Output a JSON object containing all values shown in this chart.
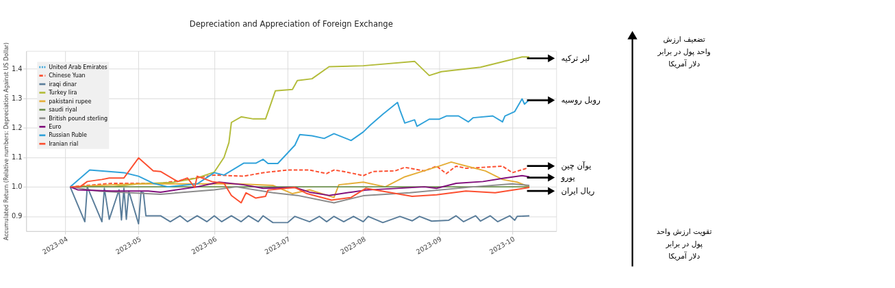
{
  "chart_data": {
    "type": "line",
    "title": "Depreciation and Appreciation of Foreign Exchange",
    "ylabel": "Accumulated Return (Relative numbers: Depreciation Against US Dollar)",
    "xlim": [
      "2023-03-16",
      "2023-10-19"
    ],
    "xticks": [
      "2023-04",
      "2023-05",
      "2023-06",
      "2023-07",
      "2023-08",
      "2023-09",
      "2023-10"
    ],
    "ylim": [
      0.85,
      1.46
    ],
    "yticks": [
      0.9,
      {
        "value": 1,
        "label": "1.0"
      },
      1.1,
      1.2,
      1.3,
      1.4
    ],
    "grid": true,
    "legend": "top left",
    "marker": "none",
    "series": [
      {
        "name": "United Arab Emirates",
        "color": "#30a2da",
        "line_style": "dotted"
      },
      {
        "name": "Chinese Yuan",
        "color": "#fc4f30",
        "line_style": "dashed",
        "x": [
          "2023-04-03",
          "2023-04-20",
          "2023-05-10",
          "2023-05-21",
          "2023-06-01",
          "2023-06-13",
          "2023-06-21",
          "2023-07-01",
          "2023-07-10",
          "2023-07-17",
          "2023-07-20",
          "2023-07-24",
          "2023-08-01",
          "2023-08-05",
          "2023-08-14",
          "2023-08-18",
          "2023-08-26",
          "2023-08-31",
          "2023-09-04",
          "2023-09-08",
          "2023-09-12",
          "2023-09-19",
          "2023-09-27",
          "2023-10-01",
          "2023-10-07"
        ],
        "values": [
          1.0,
          1.012,
          1.012,
          1.025,
          1.04,
          1.036,
          1.048,
          1.057,
          1.057,
          1.045,
          1.057,
          1.052,
          1.038,
          1.052,
          1.054,
          1.066,
          1.054,
          1.07,
          1.045,
          1.07,
          1.063,
          1.066,
          1.07,
          1.048,
          1.063
        ]
      },
      {
        "name": "iraqi dinar",
        "color": "#5a7d9a",
        "line_style": "solid",
        "x": [
          "2023-04-03",
          "2023-04-09",
          "2023-04-10",
          "2023-04-16",
          "2023-04-17",
          "2023-04-19",
          "2023-04-23",
          "2023-04-24",
          "2023-04-25",
          "2023-04-26",
          "2023-04-27",
          "2023-05-01",
          "2023-05-02",
          "2023-05-03",
          "2023-05-04",
          "2023-05-10",
          "2023-05-14",
          "2023-05-18",
          "2023-05-21",
          "2023-05-25",
          "2023-05-29",
          "2023-06-01",
          "2023-06-04",
          "2023-06-08",
          "2023-06-12",
          "2023-06-15",
          "2023-06-19",
          "2023-06-21",
          "2023-06-25",
          "2023-07-01",
          "2023-07-04",
          "2023-07-10",
          "2023-07-14",
          "2023-07-17",
          "2023-07-20",
          "2023-07-24",
          "2023-07-28",
          "2023-08-01",
          "2023-08-03",
          "2023-08-09",
          "2023-08-16",
          "2023-08-21",
          "2023-08-24",
          "2023-08-29",
          "2023-09-05",
          "2023-09-08",
          "2023-09-11",
          "2023-09-16",
          "2023-09-18",
          "2023-09-22",
          "2023-09-25",
          "2023-09-30",
          "2023-10-02",
          "2023-10-03",
          "2023-10-08"
        ],
        "values": [
          1.0,
          0.882,
          1.0,
          0.882,
          0.995,
          0.89,
          0.99,
          0.888,
          0.995,
          0.89,
          0.986,
          0.875,
          0.982,
          0.98,
          0.902,
          0.902,
          0.882,
          0.902,
          0.882,
          0.902,
          0.882,
          0.902,
          0.882,
          0.902,
          0.882,
          0.902,
          0.882,
          0.902,
          0.879,
          0.879,
          0.9,
          0.882,
          0.9,
          0.882,
          0.9,
          0.882,
          0.9,
          0.882,
          0.9,
          0.879,
          0.9,
          0.885,
          0.9,
          0.884,
          0.887,
          0.902,
          0.882,
          0.902,
          0.884,
          0.902,
          0.882,
          0.902,
          0.887,
          0.9,
          0.902
        ]
      },
      {
        "name": "Turkey lira",
        "color": "#b3bc3a",
        "line_style": "solid",
        "x": [
          "2023-04-03",
          "2023-04-20",
          "2023-05-01",
          "2023-05-15",
          "2023-05-25",
          "2023-06-01",
          "2023-06-05",
          "2023-06-07",
          "2023-06-08",
          "2023-06-12",
          "2023-06-17",
          "2023-06-22",
          "2023-06-26",
          "2023-07-03",
          "2023-07-05",
          "2023-07-11",
          "2023-07-18",
          "2023-08-01",
          "2023-08-22",
          "2023-08-28",
          "2023-09-02",
          "2023-09-18",
          "2023-10-05",
          "2023-10-08"
        ],
        "values": [
          1.0,
          1.0,
          1.01,
          1.015,
          1.03,
          1.05,
          1.1,
          1.15,
          1.218,
          1.237,
          1.23,
          1.23,
          1.325,
          1.33,
          1.36,
          1.366,
          1.407,
          1.41,
          1.425,
          1.377,
          1.39,
          1.405,
          1.44,
          1.44
        ]
      },
      {
        "name": "pakistani rupee",
        "color": "#e5ae38",
        "line_style": "solid",
        "x": [
          "2023-04-03",
          "2023-04-15",
          "2023-05-01",
          "2023-05-20",
          "2023-06-10",
          "2023-06-25",
          "2023-07-03",
          "2023-07-10",
          "2023-07-20",
          "2023-07-22",
          "2023-08-01",
          "2023-08-10",
          "2023-08-18",
          "2023-09-01",
          "2023-09-06",
          "2023-09-10",
          "2023-09-20",
          "2023-09-27",
          "2023-10-03",
          "2023-10-08"
        ],
        "values": [
          1.0,
          1.005,
          1.01,
          1.01,
          1.01,
          1.005,
          0.977,
          0.99,
          0.964,
          1.007,
          1.016,
          1.0,
          1.034,
          1.07,
          1.084,
          1.075,
          1.054,
          1.025,
          1.016,
          1.0
        ]
      },
      {
        "name": "saudi riyal",
        "color": "#6d904f",
        "line_style": "solid",
        "x": [
          "2023-04-03",
          "2023-06-01",
          "2023-08-01",
          "2023-10-08"
        ],
        "values": [
          1.0,
          1.0,
          1.0,
          1.0
        ]
      },
      {
        "name": "British pound sterling",
        "color": "#8b8b8b",
        "line_style": "solid",
        "x": [
          "2023-04-03",
          "2023-04-15",
          "2023-05-10",
          "2023-06-01",
          "2023-06-10",
          "2023-06-25",
          "2023-07-05",
          "2023-07-20",
          "2023-08-01",
          "2023-08-20",
          "2023-09-15",
          "2023-10-01",
          "2023-10-08"
        ],
        "values": [
          1.0,
          0.985,
          0.975,
          0.99,
          1.0,
          0.98,
          0.971,
          0.946,
          0.97,
          0.98,
          1.0,
          1.01,
          1.005
        ]
      },
      {
        "name": "Euro",
        "color": "#810f7c",
        "line_style": "solid",
        "x": [
          "2023-04-03",
          "2023-04-06",
          "2023-04-20",
          "2023-05-05",
          "2023-05-10",
          "2023-05-25",
          "2023-06-03",
          "2023-06-13",
          "2023-06-21",
          "2023-07-04",
          "2023-07-10",
          "2023-07-18",
          "2023-07-27",
          "2023-08-02",
          "2023-08-26",
          "2023-08-31",
          "2023-09-08",
          "2023-09-19",
          "2023-09-28",
          "2023-10-05",
          "2023-10-08"
        ],
        "values": [
          1.0,
          0.99,
          0.986,
          0.986,
          0.982,
          1.0,
          1.016,
          1.007,
          0.995,
          0.998,
          0.982,
          0.971,
          0.982,
          0.989,
          1.0,
          0.995,
          1.012,
          1.018,
          1.03,
          1.038,
          1.034
        ]
      },
      {
        "name": "Russian Ruble",
        "color": "#30a2da",
        "line_style": "solid",
        "x": [
          "2023-04-03",
          "2023-04-11",
          "2023-04-25",
          "2023-05-01",
          "2023-05-07",
          "2023-05-13",
          "2023-05-25",
          "2023-06-01",
          "2023-06-05",
          "2023-06-13",
          "2023-06-18",
          "2023-06-21",
          "2023-06-23",
          "2023-06-27",
          "2023-07-04",
          "2023-07-06",
          "2023-07-11",
          "2023-07-16",
          "2023-07-20",
          "2023-07-27",
          "2023-08-01",
          "2023-08-04",
          "2023-08-09",
          "2023-08-15",
          "2023-08-16",
          "2023-08-18",
          "2023-08-22",
          "2023-08-23",
          "2023-08-28",
          "2023-09-01",
          "2023-09-04",
          "2023-09-09",
          "2023-09-13",
          "2023-09-15",
          "2023-09-23",
          "2023-09-27",
          "2023-09-28",
          "2023-10-02",
          "2023-10-05",
          "2023-10-06",
          "2023-10-08"
        ],
        "values": [
          1.0,
          1.057,
          1.048,
          1.036,
          1.012,
          1.0,
          1.01,
          1.048,
          1.04,
          1.08,
          1.08,
          1.093,
          1.079,
          1.079,
          1.141,
          1.177,
          1.173,
          1.164,
          1.18,
          1.157,
          1.186,
          1.21,
          1.246,
          1.286,
          1.26,
          1.216,
          1.227,
          1.205,
          1.229,
          1.229,
          1.24,
          1.24,
          1.22,
          1.234,
          1.24,
          1.22,
          1.24,
          1.255,
          1.298,
          1.28,
          1.295
        ]
      },
      {
        "name": "Iranian rial",
        "color": "#fc4f30",
        "line_style": "solid",
        "x": [
          "2023-04-03",
          "2023-04-07",
          "2023-04-10",
          "2023-04-16",
          "2023-04-19",
          "2023-04-25",
          "2023-05-01",
          "2023-05-07",
          "2023-05-10",
          "2023-05-17",
          "2023-05-21",
          "2023-05-24",
          "2023-05-25",
          "2023-05-31",
          "2023-06-05",
          "2023-06-08",
          "2023-06-12",
          "2023-06-14",
          "2023-06-18",
          "2023-06-22",
          "2023-06-23",
          "2023-07-04",
          "2023-07-09",
          "2023-07-19",
          "2023-07-27",
          "2023-08-02",
          "2023-08-21",
          "2023-08-31",
          "2023-09-12",
          "2023-09-24",
          "2023-10-08"
        ],
        "values": [
          1.0,
          1.0,
          1.018,
          1.025,
          1.03,
          1.03,
          1.098,
          1.054,
          1.052,
          1.018,
          1.03,
          0.998,
          1.036,
          1.018,
          1.012,
          0.971,
          0.946,
          0.98,
          0.962,
          0.968,
          0.989,
          0.998,
          0.977,
          0.955,
          0.964,
          0.995,
          0.968,
          0.973,
          0.986,
          0.98,
          0.998
        ]
      }
    ],
    "annotations": [
      "لیر ترکیه",
      "روبل روسیه",
      "یوآن چین",
      "یورو",
      "ریال ایران",
      "تضعیف ارزش\nواحد پول در برابر\nدلار آمریکا",
      "تقویت ارزش واحد\nپول در برابر\nدلار آمریکا"
    ]
  }
}
